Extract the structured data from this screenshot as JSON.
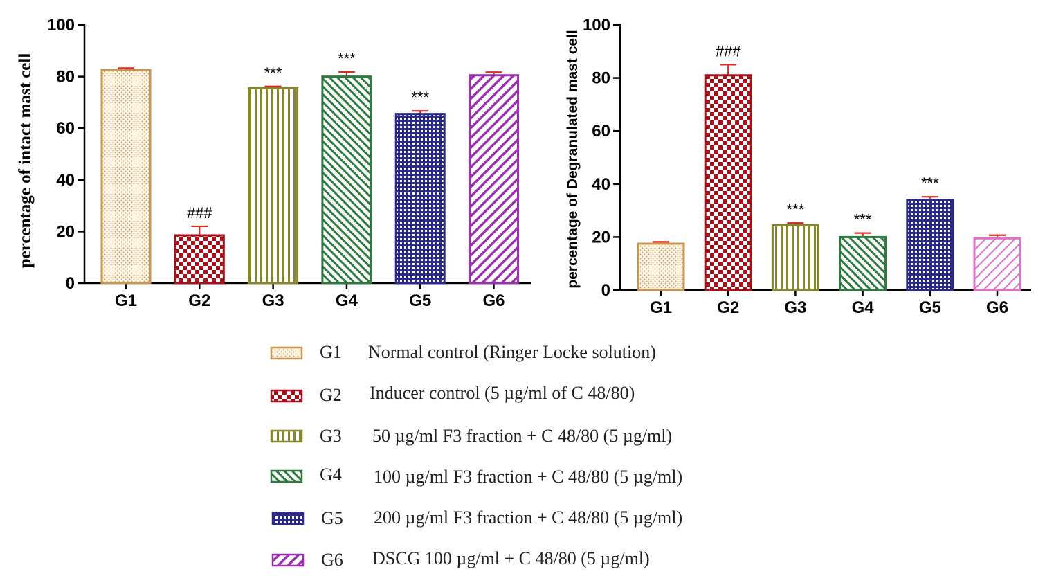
{
  "colors": {
    "G1": "#c8964e",
    "G2": "#a3131d",
    "G3": "#87862a",
    "G4": "#2c7a3e",
    "G5": "#2b2a8a",
    "G6_left": "#9b2fb0",
    "G6_right": "#e36fc9",
    "error": "#e8271d"
  },
  "chart_data": [
    {
      "type": "bar",
      "categories": [
        "G1",
        "G2",
        "G3",
        "G4",
        "G5",
        "G6"
      ],
      "values": [
        82.5,
        18.5,
        75.5,
        80,
        65.5,
        80.5
      ],
      "errors": [
        0.8,
        3.5,
        0.7,
        1.8,
        1.2,
        1.2
      ],
      "annotations": [
        "",
        "###",
        "***",
        "***",
        "***",
        ""
      ],
      "patterns": [
        "dots",
        "checker",
        "vlines",
        "diag",
        "grid",
        "diagback"
      ],
      "xlabel": "",
      "ylabel": "percentage of intact mast cell",
      "ylim": [
        0,
        100
      ],
      "yticks": [
        0,
        20,
        40,
        60,
        80,
        100
      ],
      "grid": false
    },
    {
      "type": "bar",
      "categories": [
        "G1",
        "G2",
        "G3",
        "G4",
        "G5",
        "G6"
      ],
      "values": [
        17.5,
        81,
        24.5,
        20,
        34,
        19.5
      ],
      "errors": [
        0.7,
        4,
        0.8,
        1.5,
        1.2,
        1.2
      ],
      "annotations": [
        "",
        "###",
        "***",
        "***",
        "***",
        ""
      ],
      "patterns": [
        "dots",
        "checker",
        "vlines",
        "diag",
        "grid",
        "diagback"
      ],
      "xlabel": "",
      "ylabel": "percentage of Degranulated mast cell",
      "ylim": [
        0,
        100
      ],
      "yticks": [
        0,
        20,
        40,
        60,
        80,
        100
      ],
      "grid": false
    }
  ],
  "legend": [
    {
      "code": "G1",
      "text": "Normal control (Ringer Locke solution)"
    },
    {
      "code": "G2",
      "text": "Inducer control (5 µg/ml of C 48/80)"
    },
    {
      "code": "G3",
      "text": "50 µg/ml F3 fraction +  C 48/80 (5 µg/ml)"
    },
    {
      "code": "G4",
      "text": "100 µg/ml F3 fraction +  C 48/80 (5 µg/ml)"
    },
    {
      "code": "G5",
      "text": "200 µg/ml F3  fraction +  C 48/80 (5 µg/ml)"
    },
    {
      "code": "G6",
      "text": "DSCG 100 µg/ml +  C 48/80 (5 µg/ml)"
    }
  ]
}
